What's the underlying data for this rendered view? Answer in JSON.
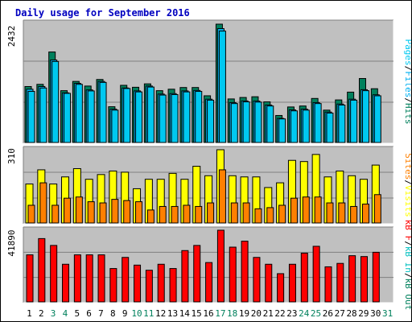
{
  "title": "Daily usage for September 2016",
  "colors": {
    "background": "#ffffff",
    "panel": "#c0c0c0",
    "title_text": "#0000c0",
    "hits": "#00805c",
    "files": "#00b0f0",
    "pages": "#00c8f0",
    "visits": "#ffff00",
    "sites": "#ff8000",
    "kb_in": "#ff0000",
    "kb_out": "#00c0c0",
    "weekend_label": "#00805c",
    "weekday_label": "#000000"
  },
  "chart_data": [
    {
      "type": "bar",
      "id": "hits-files-pages",
      "ytick_label": "2432",
      "right_labels": [
        "Pages",
        "Files",
        "Hits"
      ],
      "categories": [
        "1",
        "2",
        "3",
        "4",
        "5",
        "6",
        "7",
        "8",
        "9",
        "10",
        "11",
        "12",
        "13",
        "14",
        "15",
        "16",
        "17",
        "18",
        "19",
        "20",
        "21",
        "22",
        "23",
        "24",
        "25",
        "26",
        "27",
        "28",
        "29",
        "30",
        "31"
      ],
      "series": [
        {
          "name": "Hits",
          "values": [
            1150,
            1195,
            1860,
            1065,
            1255,
            1160,
            1295,
            735,
            1175,
            1135,
            1205,
            1065,
            1095,
            1130,
            1130,
            960,
            2432,
            895,
            925,
            940,
            835,
            555,
            730,
            750,
            905,
            665,
            875,
            1035,
            1315,
            1105,
            0
          ]
        },
        {
          "name": "Files",
          "values": [
            1095,
            1150,
            1695,
            1020,
            1215,
            1080,
            1255,
            685,
            1120,
            1060,
            1160,
            995,
            1005,
            1060,
            1070,
            890,
            2340,
            820,
            855,
            850,
            770,
            495,
            670,
            685,
            820,
            625,
            790,
            890,
            1085,
            980,
            0
          ]
        },
        {
          "name": "Pages",
          "values": [
            1050,
            1120,
            1665,
            1010,
            1195,
            1060,
            1235,
            665,
            1110,
            1040,
            1140,
            975,
            985,
            1040,
            1050,
            870,
            2290,
            800,
            835,
            830,
            750,
            485,
            650,
            665,
            800,
            605,
            770,
            870,
            1065,
            960,
            0
          ]
        }
      ]
    },
    {
      "type": "bar",
      "id": "visits-sites",
      "ytick_label": "310",
      "right_labels": [
        "Sites",
        "Visits"
      ],
      "categories": [
        "1",
        "2",
        "3",
        "4",
        "5",
        "6",
        "7",
        "8",
        "9",
        "10",
        "11",
        "12",
        "13",
        "14",
        "15",
        "16",
        "17",
        "18",
        "19",
        "20",
        "21",
        "22",
        "23",
        "24",
        "25",
        "26",
        "27",
        "28",
        "29",
        "30",
        "31"
      ],
      "series": [
        {
          "name": "Visits",
          "values": [
            165,
            225,
            165,
            195,
            230,
            185,
            205,
            220,
            215,
            145,
            185,
            185,
            210,
            185,
            240,
            200,
            310,
            200,
            195,
            195,
            150,
            170,
            265,
            260,
            290,
            195,
            220,
            200,
            185,
            245,
            0
          ]
        },
        {
          "name": "Sites",
          "values": [
            75,
            170,
            75,
            105,
            110,
            90,
            85,
            100,
            95,
            90,
            55,
            70,
            70,
            75,
            70,
            85,
            225,
            85,
            85,
            60,
            65,
            75,
            105,
            110,
            110,
            85,
            85,
            70,
            80,
            120,
            0
          ]
        }
      ]
    },
    {
      "type": "bar",
      "id": "kbin-kbout",
      "ytick_label": "41890",
      "right_labels": [
        "kB F",
        "kB In",
        "kB Out"
      ],
      "categories": [
        "1",
        "2",
        "3",
        "4",
        "5",
        "6",
        "7",
        "8",
        "9",
        "10",
        "11",
        "12",
        "13",
        "14",
        "15",
        "16",
        "17",
        "18",
        "19",
        "20",
        "21",
        "22",
        "23",
        "24",
        "25",
        "26",
        "27",
        "28",
        "29",
        "30",
        "31"
      ],
      "series": [
        {
          "name": "kB In",
          "values": [
            27500,
            37000,
            33000,
            22000,
            27500,
            27500,
            27500,
            19500,
            26000,
            21500,
            18500,
            22000,
            19500,
            30000,
            33000,
            23000,
            41890,
            32000,
            35500,
            26000,
            22000,
            16500,
            22000,
            28500,
            32500,
            20500,
            22500,
            27000,
            26500,
            29000,
            0
          ]
        }
      ]
    }
  ],
  "weekend_days": [
    3,
    4,
    10,
    11,
    17,
    18,
    24,
    25,
    31
  ]
}
